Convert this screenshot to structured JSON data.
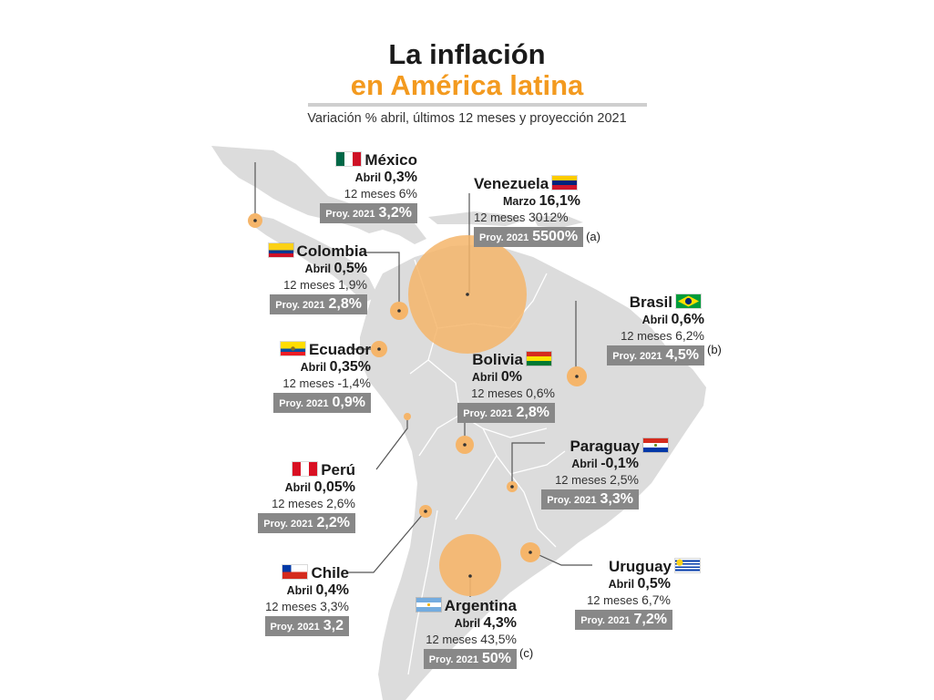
{
  "title_line1": "La inflación",
  "title_line2": "en América latina",
  "subtitle": "Variación % abril, últimos 12 meses y proyección 2021",
  "colors": {
    "accent": "#f39a1f",
    "land": "#dcdcdc",
    "bubble": "#f5b56a",
    "projection_box": "#888888"
  },
  "countries": {
    "mexico": {
      "name": "México",
      "period_label": "Abril",
      "period_value": "0,3%",
      "months_label": "12 meses",
      "months_value": "6%",
      "proj_label": "Proy. 2021",
      "proj_value": "3,2%",
      "note": ""
    },
    "venezuela": {
      "name": "Venezuela",
      "period_label": "Marzo",
      "period_value": "16,1%",
      "months_label": "12 meses",
      "months_value": "3012%",
      "proj_label": "Proy. 2021",
      "proj_value": "5500%",
      "note": "(a)"
    },
    "colombia": {
      "name": "Colombia",
      "period_label": "Abril",
      "period_value": "0,5%",
      "months_label": "12 meses",
      "months_value": "1,9%",
      "proj_label": "Proy. 2021",
      "proj_value": "2,8%",
      "note": ""
    },
    "brasil": {
      "name": "Brasil",
      "period_label": "Abril",
      "period_value": "0,6%",
      "months_label": "12 meses",
      "months_value": "6,2%",
      "proj_label": "Proy. 2021",
      "proj_value": "4,5%",
      "note": "(b)"
    },
    "ecuador": {
      "name": "Ecuador",
      "period_label": "Abril",
      "period_value": "0,35%",
      "months_label": "12 meses",
      "months_value": "-1,4%",
      "proj_label": "Proy. 2021",
      "proj_value": "0,9%",
      "note": ""
    },
    "bolivia": {
      "name": "Bolivia",
      "period_label": "Abril",
      "period_value": "0%",
      "months_label": "12 meses",
      "months_value": "0,6%",
      "proj_label": "Proy. 2021",
      "proj_value": "2,8%",
      "note": ""
    },
    "paraguay": {
      "name": "Paraguay",
      "period_label": "Abril",
      "period_value": "-0,1%",
      "months_label": "12 meses",
      "months_value": "2,5%",
      "proj_label": "Proy. 2021",
      "proj_value": "3,3%",
      "note": ""
    },
    "peru": {
      "name": "Perú",
      "period_label": "Abril",
      "period_value": "0,05%",
      "months_label": "12 meses",
      "months_value": "2,6%",
      "proj_label": "Proy. 2021",
      "proj_value": "2,2%",
      "note": ""
    },
    "chile": {
      "name": "Chile",
      "period_label": "Abril",
      "period_value": "0,4%",
      "months_label": "12 meses",
      "months_value": "3,3%",
      "proj_label": "Proy. 2021",
      "proj_value": "3,2",
      "note": ""
    },
    "uruguay": {
      "name": "Uruguay",
      "period_label": "Abril",
      "period_value": "0,5%",
      "months_label": "12 meses",
      "months_value": "6,7%",
      "proj_label": "Proy. 2021",
      "proj_value": "7,2%",
      "note": ""
    },
    "argentina": {
      "name": "Argentina",
      "period_label": "Abril",
      "period_value": "4,3%",
      "months_label": "12 meses",
      "months_value": "43,5%",
      "proj_label": "Proy. 2021",
      "proj_value": "50%",
      "note": "(c)"
    }
  }
}
